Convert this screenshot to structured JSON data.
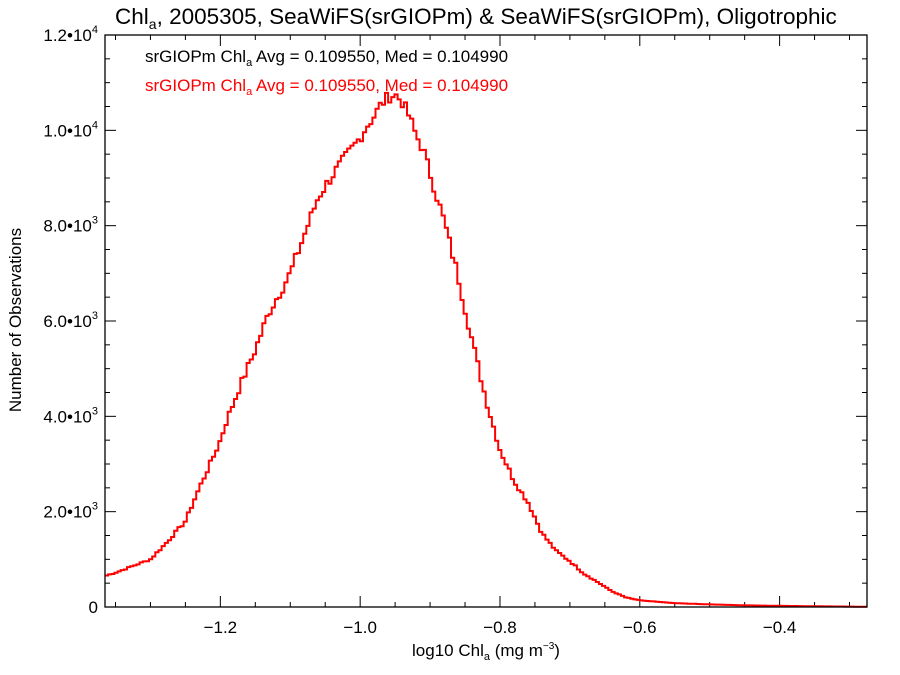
{
  "chart_data": {
    "type": "histogram-step",
    "title": {
      "main": "Chl",
      "sub": "a",
      "rest": ", 2005305, SeaWiFS(srGIOPm) & SeaWiFS(srGIOPm), Oligotrophic"
    },
    "xlabel": {
      "pre": "log10 Chl",
      "sub": "a",
      "mid": " (mg m",
      "sup": "−3",
      "post": ")"
    },
    "ylabel": "Number of Observations",
    "xlim": [
      -1.365,
      -0.275
    ],
    "ylim": [
      0,
      12000
    ],
    "xticks": [
      {
        "value": -1.2,
        "label": "−1.2"
      },
      {
        "value": -1.0,
        "label": "−1.0"
      },
      {
        "value": -0.8,
        "label": "−0.8"
      },
      {
        "value": -0.6,
        "label": "−0.6"
      },
      {
        "value": -0.4,
        "label": "−0.4"
      }
    ],
    "yticks": [
      {
        "value": 0,
        "mant": "0",
        "exp": ""
      },
      {
        "value": 2000,
        "mant": "2.0•10",
        "exp": "3"
      },
      {
        "value": 4000,
        "mant": "4.0•10",
        "exp": "3"
      },
      {
        "value": 6000,
        "mant": "6.0•10",
        "exp": "3"
      },
      {
        "value": 8000,
        "mant": "8.0•10",
        "exp": "3"
      },
      {
        "value": 10000,
        "mant": "1.0•10",
        "exp": "4"
      },
      {
        "value": 12000,
        "mant": "1.2•10",
        "exp": "4"
      }
    ],
    "legend": [
      {
        "pre": "srGIOPm Chl",
        "sub": "a",
        "post": " Avg = 0.109550, Med = 0.104990",
        "color": "#000000"
      },
      {
        "pre": "srGIOPm Chl",
        "sub": "a",
        "post": " Avg = 0.109550, Med = 0.104990",
        "color": "#ff0000"
      }
    ],
    "legend_position": "top-left",
    "grid": false,
    "series": [
      {
        "color": "#ff0000",
        "x": [
          -1.365,
          -1.35,
          -1.3,
          -1.28,
          -1.25,
          -1.23,
          -1.21,
          -1.2,
          -1.19,
          -1.17,
          -1.15,
          -1.13,
          -1.1,
          -1.08,
          -1.06,
          -1.04,
          -1.02,
          -1.0,
          -0.99,
          -0.98,
          -0.97,
          -0.96,
          -0.95,
          -0.94,
          -0.93,
          -0.92,
          -0.91,
          -0.9,
          -0.88,
          -0.86,
          -0.84,
          -0.82,
          -0.8,
          -0.78,
          -0.76,
          -0.74,
          -0.72,
          -0.7,
          -0.68,
          -0.66,
          -0.64,
          -0.62,
          -0.6,
          -0.55,
          -0.5,
          -0.45,
          -0.4,
          -0.35,
          -0.3,
          -0.275
        ],
        "y": [
          650,
          720,
          1000,
          1300,
          1800,
          2500,
          3150,
          3500,
          3950,
          4700,
          5400,
          6200,
          7000,
          7800,
          8600,
          9050,
          9450,
          9850,
          10100,
          10300,
          10550,
          10700,
          10750,
          10600,
          10300,
          9900,
          9600,
          9100,
          8100,
          6950,
          5600,
          4350,
          3300,
          2650,
          2200,
          1550,
          1180,
          960,
          700,
          520,
          330,
          200,
          140,
          80,
          55,
          35,
          25,
          15,
          8,
          5
        ]
      }
    ]
  }
}
